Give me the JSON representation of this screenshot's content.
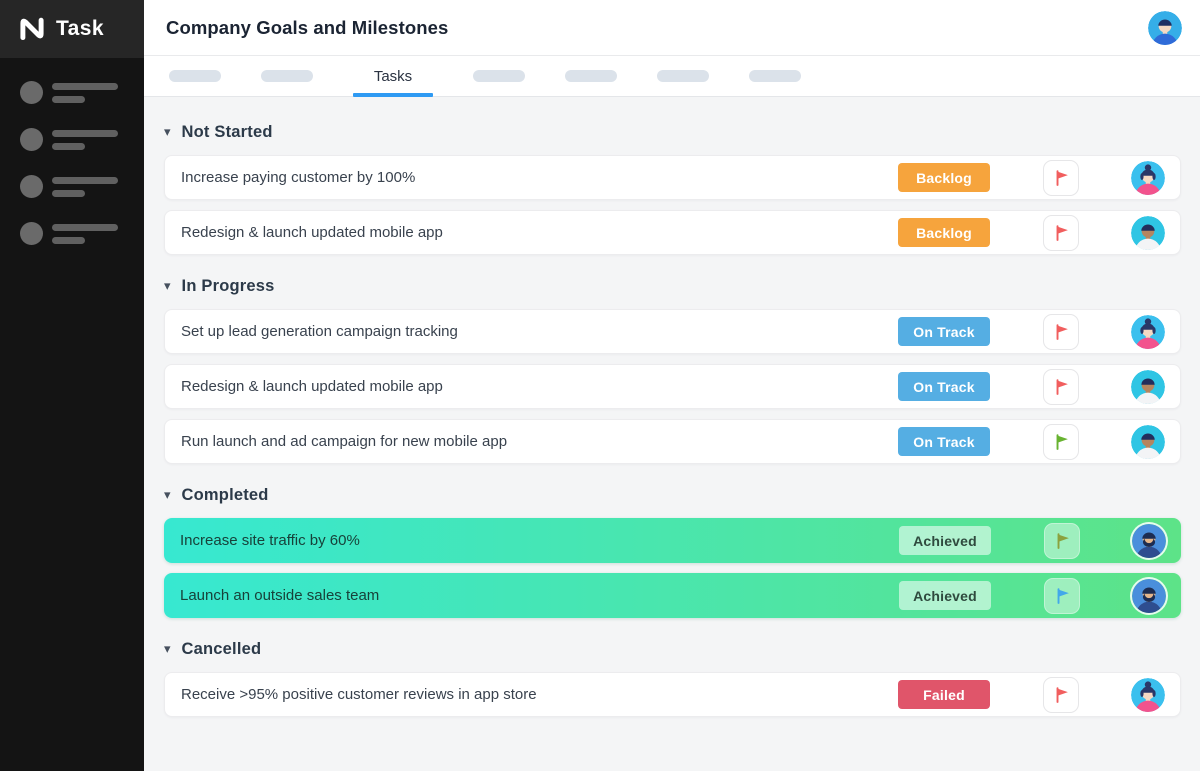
{
  "app": {
    "logo_text": "Task",
    "sidebar_placeholder_items": 4
  },
  "header": {
    "title": "Company Goals and Milestones",
    "avatar": "man-blue"
  },
  "tabs": {
    "placeholders_before": 2,
    "placeholders_after": 4,
    "active_label": "Tasks",
    "underline_color": "#2e9af3"
  },
  "sections": [
    {
      "title": "Not Started",
      "rows": [
        {
          "title": "Increase paying customer by 100%",
          "status": "Backlog",
          "status_bg": "#f6a43d",
          "status_color": "#ffffff",
          "flag_color": "#f15e5e",
          "avatar": "woman-pink",
          "highlight": false
        },
        {
          "title": "Redesign & launch updated mobile app",
          "status": "Backlog",
          "status_bg": "#f6a43d",
          "status_color": "#ffffff",
          "flag_color": "#f15e5e",
          "avatar": "man-tan",
          "highlight": false
        }
      ]
    },
    {
      "title": "In Progress",
      "rows": [
        {
          "title": "Set up lead generation campaign tracking",
          "status": "On Track",
          "status_bg": "#55aee3",
          "status_color": "#ffffff",
          "flag_color": "#f15e5e",
          "avatar": "woman-pink",
          "highlight": false
        },
        {
          "title": "Redesign & launch updated mobile app",
          "status": "On Track",
          "status_bg": "#55aee3",
          "status_color": "#ffffff",
          "flag_color": "#f15e5e",
          "avatar": "man-tan",
          "highlight": false
        },
        {
          "title": "Run launch and ad campaign for new mobile app",
          "status": "On Track",
          "status_bg": "#55aee3",
          "status_color": "#ffffff",
          "flag_color": "#68b331",
          "avatar": "man-tan",
          "highlight": false
        }
      ]
    },
    {
      "title": "Completed",
      "rows": [
        {
          "title": "Increase site traffic by 60%",
          "status": "Achieved",
          "status_bg": "rgba(255,255,255,0.55)",
          "status_color": "#2f4a3e",
          "flag_color": "#8ba23e",
          "avatar": "man-beard",
          "highlight": true
        },
        {
          "title": "Launch an outside sales team",
          "status": "Achieved",
          "status_bg": "rgba(255,255,255,0.55)",
          "status_color": "#2f4a3e",
          "flag_color": "#42a8ea",
          "avatar": "man-beard",
          "highlight": true
        }
      ]
    },
    {
      "title": "Cancelled",
      "rows": [
        {
          "title": "Receive >95% positive customer reviews in app store",
          "status": "Failed",
          "status_bg": "#e0556a",
          "status_color": "#ffffff",
          "flag_color": "#f15e5e",
          "avatar": "woman-pink",
          "highlight": false
        }
      ]
    }
  ],
  "highlight_gradient": [
    "#37e8d1",
    "#5de388"
  ],
  "avatars": {
    "woman-pink": {
      "bg": "#3bc0ee",
      "skin": "#f6d9c3",
      "hair": "#2a3767",
      "shirt": "#f2538d",
      "bun": true,
      "beard": null
    },
    "man-tan": {
      "bg": "#2fc5e4",
      "skin": "#b5855f",
      "hair": "#232e5c",
      "shirt": "#f3f4f6",
      "bun": false,
      "beard": null
    },
    "man-beard": {
      "bg": "#4a8fdc",
      "skin": "#e3b68c",
      "hair": "#1d2d52",
      "shirt": "#2e4d8f",
      "bun": false,
      "beard": "#1d2d52"
    },
    "man-blue": {
      "bg": "#35aee8",
      "skin": "#f6d9c3",
      "hair": "#1f2f63",
      "shirt": "#2f6bd8",
      "bun": false,
      "beard": null
    }
  },
  "icons": {
    "chevron_down": "▾",
    "section_chevron": "collapse-chevron-icon",
    "flag": "flag-icon"
  }
}
